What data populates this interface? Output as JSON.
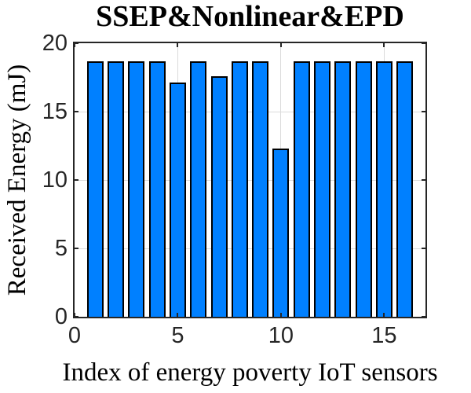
{
  "figure": {
    "title": "SSEP&Nonlinear&EPD"
  },
  "colors": {
    "bar_fill": "#0080FF",
    "bar_edge": "#000000",
    "grid": "#DBDBDB",
    "axis": "#262626",
    "background": "#FFFFFF",
    "label_text": "#000000",
    "tick_text": "#262626"
  },
  "chart_data": {
    "type": "bar",
    "title": "SSEP&Nonlinear&EPD",
    "xlabel": "Index of energy poverty IoT sensors",
    "ylabel": "Received Energy (mJ)",
    "x": [
      1,
      2,
      3,
      4,
      5,
      6,
      7,
      8,
      9,
      10,
      11,
      12,
      13,
      14,
      15,
      16
    ],
    "values": [
      18.7,
      18.7,
      18.7,
      18.7,
      17.1,
      18.7,
      17.6,
      18.7,
      18.7,
      12.3,
      18.7,
      18.7,
      18.7,
      18.7,
      18.7,
      18.7
    ],
    "xlim": [
      0,
      17
    ],
    "ylim": [
      0,
      20
    ],
    "xticks": [
      0,
      5,
      10,
      15
    ],
    "yticks": [
      0,
      5,
      10,
      15,
      20
    ],
    "grid": true,
    "box": true,
    "tick_direction": "in",
    "bar_width": 0.8,
    "legend": "none"
  }
}
